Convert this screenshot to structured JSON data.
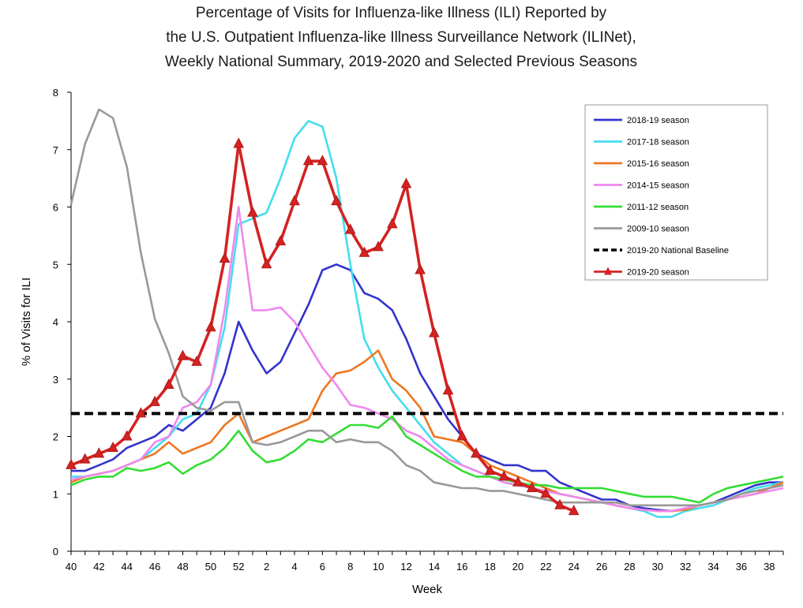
{
  "chart_data": {
    "type": "line",
    "title_lines": [
      "Percentage of Visits for Influenza-like Illness (ILI) Reported by",
      "the U.S. Outpatient Influenza-like Illness Surveillance Network (ILINet),",
      "Weekly National Summary, 2019-2020 and Selected Previous Seasons"
    ],
    "xlabel": "Week",
    "ylabel": "% of Visits for ILI",
    "ylim": [
      0,
      8
    ],
    "yticks": [
      0,
      1,
      2,
      3,
      4,
      5,
      6,
      7,
      8
    ],
    "x_tick_labels": [
      "40",
      "42",
      "44",
      "46",
      "48",
      "50",
      "52",
      "2",
      "4",
      "6",
      "8",
      "10",
      "12",
      "14",
      "16",
      "18",
      "20",
      "22",
      "24",
      "26",
      "28",
      "30",
      "32",
      "34",
      "36",
      "38"
    ],
    "weeks": [
      "40",
      "41",
      "42",
      "43",
      "44",
      "45",
      "46",
      "47",
      "48",
      "49",
      "50",
      "51",
      "52",
      "1",
      "2",
      "3",
      "4",
      "5",
      "6",
      "7",
      "8",
      "9",
      "10",
      "11",
      "12",
      "13",
      "14",
      "15",
      "16",
      "17",
      "18",
      "19",
      "20",
      "21",
      "22",
      "23",
      "24",
      "25",
      "26",
      "27",
      "28",
      "29",
      "30",
      "31",
      "32",
      "33",
      "34",
      "35",
      "36",
      "37",
      "38",
      "39"
    ],
    "legend_position": "top-right",
    "grid": false,
    "series": [
      {
        "name": "2018-19 season",
        "color": "#3333cc",
        "style": "solid",
        "values": [
          1.4,
          1.4,
          1.5,
          1.6,
          1.8,
          1.9,
          2.0,
          2.2,
          2.1,
          2.3,
          2.5,
          3.1,
          4.0,
          3.5,
          3.1,
          3.3,
          3.8,
          4.3,
          4.9,
          5.0,
          4.9,
          4.5,
          4.4,
          4.2,
          3.7,
          3.1,
          2.7,
          2.3,
          2.0,
          1.7,
          1.6,
          1.5,
          1.5,
          1.4,
          1.4,
          1.2,
          1.1,
          1.0,
          0.9,
          0.9,
          0.8,
          0.75,
          0.72,
          0.7,
          0.75,
          0.8,
          0.85,
          0.95,
          1.05,
          1.15,
          1.2,
          1.2
        ]
      },
      {
        "name": "2017-18 season",
        "color": "#44ddee",
        "style": "solid",
        "values": [
          1.3,
          1.3,
          1.35,
          1.4,
          1.5,
          1.6,
          1.8,
          2.0,
          2.3,
          2.4,
          2.9,
          3.9,
          5.7,
          5.8,
          5.9,
          6.5,
          7.2,
          7.5,
          7.4,
          6.5,
          5.0,
          3.7,
          3.2,
          2.8,
          2.5,
          2.2,
          1.9,
          1.7,
          1.5,
          1.4,
          1.3,
          1.2,
          1.15,
          1.1,
          1.05,
          1.0,
          0.95,
          0.9,
          0.85,
          0.8,
          0.75,
          0.7,
          0.6,
          0.6,
          0.7,
          0.75,
          0.8,
          0.9,
          1.0,
          1.1,
          1.15,
          1.2
        ]
      },
      {
        "name": "2015-16 season",
        "color": "#ee7722",
        "style": "solid",
        "values": [
          1.2,
          1.3,
          1.35,
          1.4,
          1.5,
          1.6,
          1.7,
          1.9,
          1.7,
          1.8,
          1.9,
          2.2,
          2.4,
          1.9,
          2.0,
          2.1,
          2.2,
          2.3,
          2.8,
          3.1,
          3.15,
          3.3,
          3.5,
          3.0,
          2.8,
          2.5,
          2.0,
          1.95,
          1.9,
          1.7,
          1.5,
          1.4,
          1.3,
          1.2,
          1.1,
          1.0,
          0.95,
          0.9,
          0.85,
          0.8,
          0.75,
          0.72,
          0.7,
          0.7,
          0.72,
          0.8,
          0.85,
          0.9,
          0.95,
          1.0,
          1.1,
          1.2
        ]
      },
      {
        "name": "2014-15 season",
        "color": "#ee88ee",
        "style": "solid",
        "values": [
          1.25,
          1.3,
          1.35,
          1.4,
          1.5,
          1.6,
          1.9,
          2.0,
          2.5,
          2.6,
          2.9,
          4.2,
          6.0,
          4.2,
          4.2,
          4.25,
          4.0,
          3.6,
          3.2,
          2.9,
          2.55,
          2.5,
          2.4,
          2.3,
          2.1,
          2.0,
          1.8,
          1.6,
          1.5,
          1.4,
          1.3,
          1.2,
          1.15,
          1.1,
          1.05,
          1.0,
          0.95,
          0.9,
          0.85,
          0.8,
          0.75,
          0.72,
          0.7,
          0.7,
          0.75,
          0.8,
          0.85,
          0.9,
          0.95,
          1.0,
          1.05,
          1.1
        ]
      },
      {
        "name": "2011-12 season",
        "color": "#33dd33",
        "style": "solid",
        "values": [
          1.15,
          1.25,
          1.3,
          1.3,
          1.45,
          1.4,
          1.45,
          1.55,
          1.35,
          1.5,
          1.6,
          1.8,
          2.1,
          1.75,
          1.55,
          1.6,
          1.75,
          1.95,
          1.9,
          2.05,
          2.2,
          2.2,
          2.15,
          2.35,
          2.0,
          1.85,
          1.7,
          1.55,
          1.4,
          1.3,
          1.3,
          1.25,
          1.2,
          1.15,
          1.15,
          1.1,
          1.1,
          1.1,
          1.1,
          1.05,
          1.0,
          0.95,
          0.95,
          0.95,
          0.9,
          0.85,
          1.0,
          1.1,
          1.15,
          1.2,
          1.25,
          1.3
        ]
      },
      {
        "name": "2009-10 season",
        "color": "#999999",
        "style": "solid",
        "values": [
          6.05,
          7.1,
          7.7,
          7.55,
          6.7,
          5.2,
          4.05,
          3.45,
          2.7,
          2.5,
          2.45,
          2.6,
          2.6,
          1.9,
          1.85,
          1.9,
          2.0,
          2.1,
          2.1,
          1.9,
          1.95,
          1.9,
          1.9,
          1.75,
          1.5,
          1.4,
          1.2,
          1.15,
          1.1,
          1.1,
          1.05,
          1.05,
          1.0,
          0.95,
          0.9,
          0.85,
          0.85,
          0.85,
          0.85,
          0.85,
          0.8,
          0.8,
          0.8,
          0.8,
          0.8,
          0.8,
          0.85,
          0.9,
          1.0,
          1.05,
          1.1,
          1.15
        ]
      },
      {
        "name": "2019-20 National Baseline",
        "color": "#000000",
        "style": "dashed",
        "baseline": 2.4
      },
      {
        "name": "2019-20 season",
        "color": "#d42222",
        "style": "solid-markers",
        "values": [
          1.5,
          1.6,
          1.7,
          1.8,
          2.0,
          2.4,
          2.6,
          2.9,
          3.4,
          3.3,
          3.9,
          5.1,
          7.1,
          5.9,
          5.0,
          5.4,
          6.1,
          6.8,
          6.8,
          6.1,
          5.6,
          5.2,
          5.3,
          5.7,
          6.4,
          4.9,
          3.8,
          2.8,
          2.0,
          1.7,
          1.4,
          1.3,
          1.2,
          1.1,
          1.0,
          0.8,
          0.7
        ]
      }
    ]
  }
}
